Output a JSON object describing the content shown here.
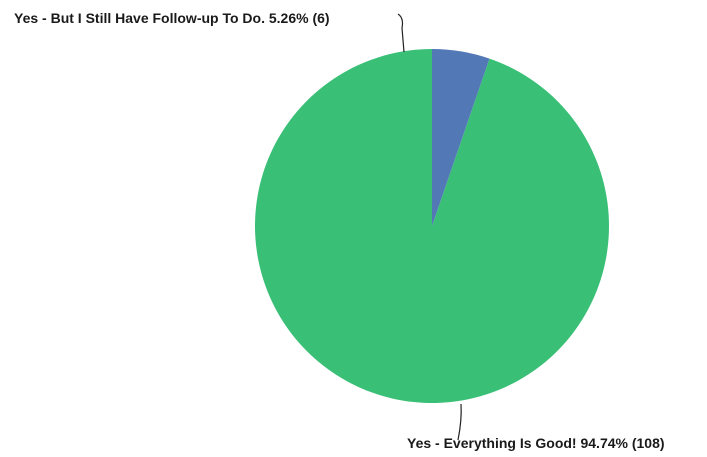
{
  "chart_data": {
    "type": "pie",
    "start_angle_deg": 0,
    "direction": "counterclockwise",
    "slices": [
      {
        "label": "Yes - Everything Is Good!",
        "percent_label": "94.74%",
        "count_label": "(108)",
        "value": 108,
        "percent": 94.74,
        "color": "#3abf76"
      },
      {
        "label": "Yes - But I Still Have Follow-up To Do.",
        "percent_label": "5.26%",
        "count_label": "(6)",
        "value": 6,
        "percent": 5.26,
        "color": "#5279b6"
      }
    ],
    "label_texts": [
      "Yes - Everything Is Good! 94.74% (108)",
      "Yes - But I Still Have Follow-up To Do. 5.26% (6)"
    ]
  }
}
